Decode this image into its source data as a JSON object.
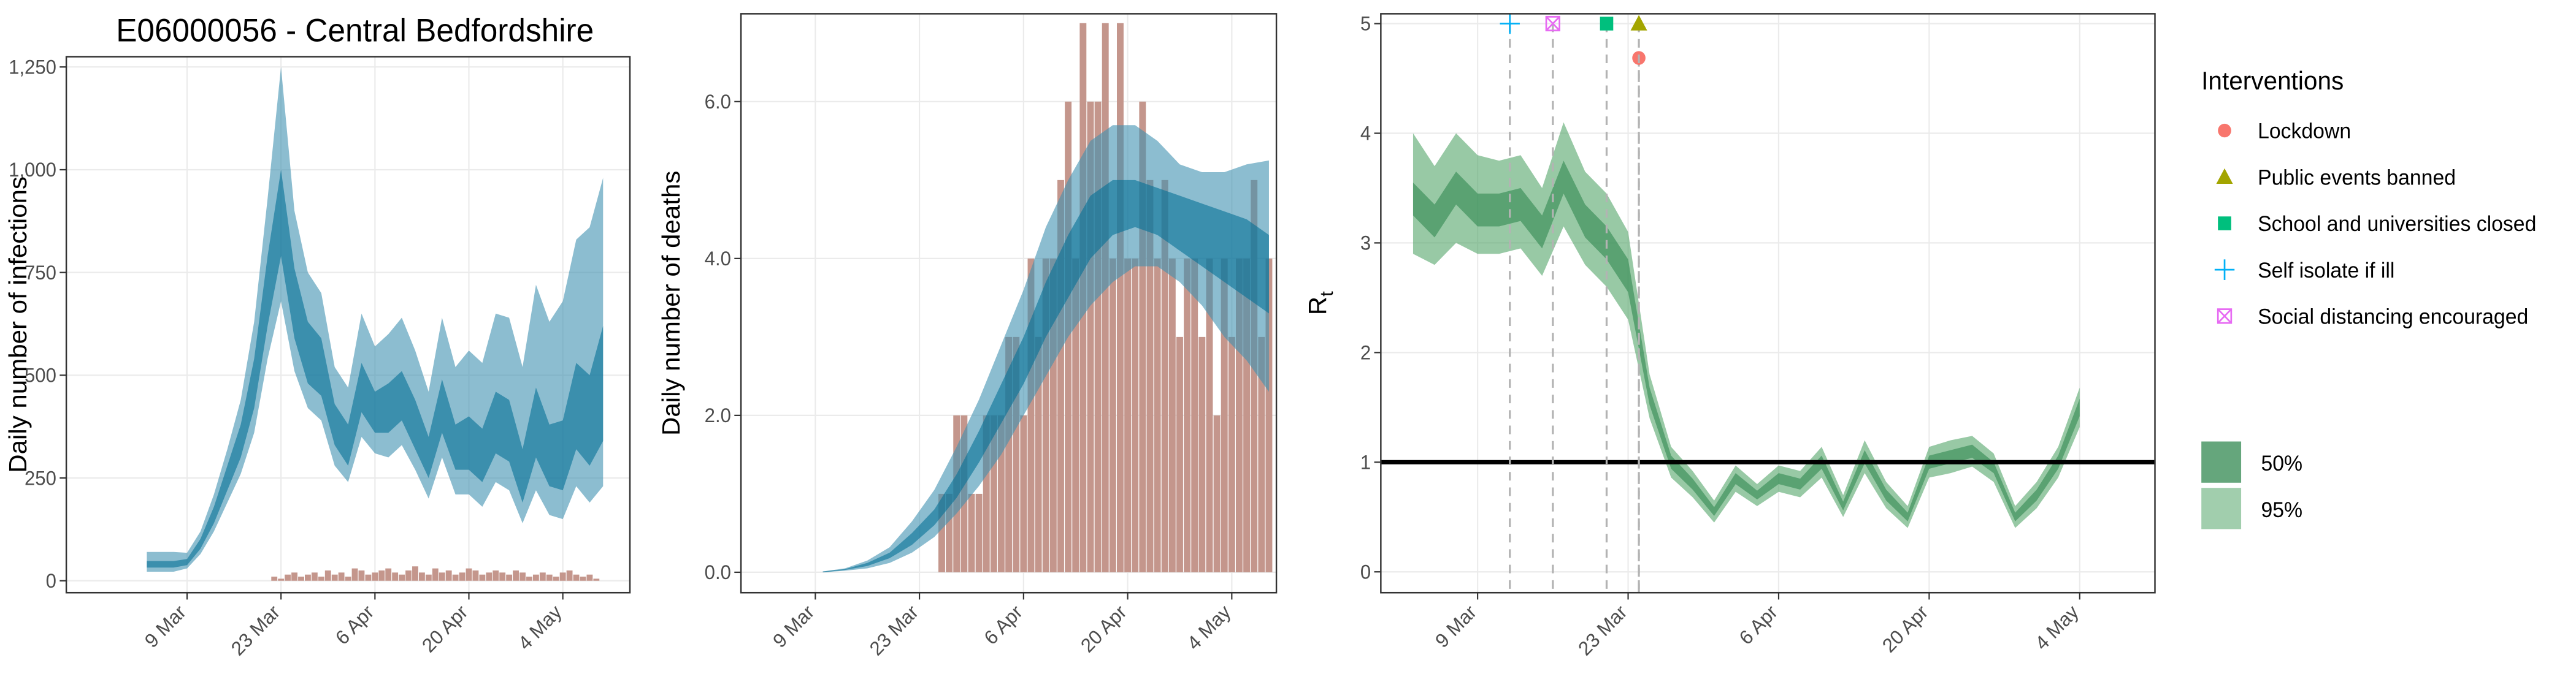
{
  "chart_data": [
    {
      "type": "band",
      "title": "E06000056 - Central Bedfordshire",
      "y_label": "Daily number of infections",
      "xlim": [
        "19 Feb",
        "14 May"
      ],
      "xticks": [
        "9 Mar",
        "23 Mar",
        "6 Apr",
        "20 Apr",
        "4 May"
      ],
      "ylim": [
        -29,
        1275
      ],
      "yticks": [
        0,
        250,
        500,
        750,
        {
          "value": 1000,
          "label": "1,000"
        },
        {
          "value": 1250,
          "label": "1,250"
        }
      ],
      "grid": true,
      "x": [
        "3 Mar",
        "5 Mar",
        "7 Mar",
        "9 Mar",
        "11 Mar",
        "13 Mar",
        "15 Mar",
        "17 Mar",
        "19 Mar",
        "21 Mar",
        "23 Mar",
        "25 Mar",
        "27 Mar",
        "29 Mar",
        "31 Mar",
        "2 Apr",
        "4 Apr",
        "6 Apr",
        "8 Apr",
        "10 Apr",
        "12 Apr",
        "14 Apr",
        "16 Apr",
        "18 Apr",
        "20 Apr",
        "22 Apr",
        "24 Apr",
        "26 Apr",
        "28 Apr",
        "30 Apr",
        "2 May",
        "4 May",
        "6 May",
        "8 May",
        "10 May"
      ],
      "bands": [
        {
          "color": "#056f96",
          "lower": [
            32,
            32,
            32,
            38,
            78,
            140,
            220,
            300,
            420,
            620,
            790,
            590,
            480,
            450,
            330,
            280,
            410,
            360,
            360,
            390,
            320,
            250,
            360,
            270,
            270,
            240,
            310,
            290,
            190,
            300,
            230,
            220,
            320,
            280,
            340
          ],
          "upper": [
            48,
            48,
            48,
            53,
            102,
            180,
            280,
            380,
            540,
            790,
            1000,
            760,
            630,
            590,
            430,
            380,
            530,
            460,
            480,
            510,
            440,
            350,
            490,
            380,
            400,
            370,
            460,
            440,
            320,
            470,
            380,
            390,
            530,
            500,
            620
          ]
        },
        {
          "color": "#3f91b1",
          "lower": [
            22,
            22,
            22,
            30,
            65,
            120,
            190,
            260,
            360,
            540,
            680,
            510,
            420,
            390,
            280,
            240,
            350,
            310,
            300,
            330,
            270,
            200,
            300,
            210,
            210,
            180,
            240,
            220,
            140,
            220,
            160,
            150,
            230,
            190,
            230
          ],
          "upper": [
            70,
            70,
            70,
            68,
            120,
            210,
            320,
            440,
            630,
            930,
            1250,
            900,
            750,
            700,
            520,
            470,
            650,
            570,
            600,
            640,
            560,
            460,
            640,
            520,
            560,
            530,
            650,
            640,
            520,
            720,
            630,
            680,
            830,
            860,
            980
          ]
        }
      ],
      "bars": {
        "color": "#c4968c",
        "x": [
          "22 Mar",
          "23 Mar",
          "24 Mar",
          "25 Mar",
          "26 Mar",
          "27 Mar",
          "28 Mar",
          "29 Mar",
          "30 Mar",
          "31 Mar",
          "1 Apr",
          "2 Apr",
          "3 Apr",
          "4 Apr",
          "5 Apr",
          "6 Apr",
          "7 Apr",
          "8 Apr",
          "9 Apr",
          "10 Apr",
          "11 Apr",
          "12 Apr",
          "13 Apr",
          "14 Apr",
          "15 Apr",
          "16 Apr",
          "17 Apr",
          "18 Apr",
          "19 Apr",
          "20 Apr",
          "21 Apr",
          "22 Apr",
          "23 Apr",
          "24 Apr",
          "25 Apr",
          "26 Apr",
          "27 Apr",
          "28 Apr",
          "29 Apr",
          "30 Apr",
          "1 May",
          "2 May",
          "3 May",
          "4 May",
          "5 May",
          "6 May",
          "7 May",
          "8 May",
          "9 May"
        ],
        "values": [
          10,
          5,
          15,
          20,
          10,
          15,
          20,
          10,
          25,
          15,
          20,
          10,
          30,
          25,
          15,
          20,
          25,
          30,
          20,
          15,
          25,
          35,
          20,
          15,
          30,
          20,
          25,
          15,
          20,
          30,
          25,
          15,
          20,
          25,
          20,
          15,
          25,
          20,
          10,
          15,
          20,
          15,
          10,
          20,
          25,
          15,
          10,
          15,
          5
        ]
      }
    },
    {
      "type": "band",
      "y_label": "Daily number of deaths",
      "xlim": [
        "27 Feb",
        "10 May"
      ],
      "xticks": [
        "9 Mar",
        "23 Mar",
        "6 Apr",
        "20 Apr",
        "4 May"
      ],
      "ylim": [
        -0.26,
        7.12
      ],
      "yticks": [
        {
          "value": 0,
          "label": "0.0"
        },
        {
          "value": 2,
          "label": "2.0"
        },
        {
          "value": 4,
          "label": "4.0"
        },
        {
          "value": 6,
          "label": "6.0"
        }
      ],
      "grid": true,
      "x": [
        "10 Mar",
        "13 Mar",
        "16 Mar",
        "19 Mar",
        "22 Mar",
        "25 Mar",
        "28 Mar",
        "31 Mar",
        "3 Apr",
        "6 Apr",
        "9 Apr",
        "12 Apr",
        "15 Apr",
        "18 Apr",
        "21 Apr",
        "24 Apr",
        "27 Apr",
        "30 Apr",
        "3 May",
        "6 May",
        "9 May"
      ],
      "bands": [
        {
          "color": "#056f96",
          "lower": [
            0,
            0.03,
            0.08,
            0.18,
            0.35,
            0.6,
            0.95,
            1.4,
            1.9,
            2.4,
            3.0,
            3.5,
            4.0,
            4.3,
            4.4,
            4.3,
            4.1,
            3.9,
            3.7,
            3.5,
            3.3
          ],
          "upper": [
            0.01,
            0.04,
            0.12,
            0.25,
            0.5,
            0.8,
            1.25,
            1.8,
            2.4,
            3.0,
            3.7,
            4.3,
            4.8,
            5.0,
            5.0,
            4.9,
            4.8,
            4.7,
            4.6,
            4.5,
            4.3
          ]
        },
        {
          "color": "#3f91b1",
          "lower": [
            0,
            0.02,
            0.05,
            0.12,
            0.25,
            0.45,
            0.75,
            1.1,
            1.5,
            2.0,
            2.5,
            3.0,
            3.4,
            3.7,
            3.9,
            3.9,
            3.7,
            3.4,
            3.0,
            2.7,
            2.3
          ],
          "upper": [
            0.01,
            0.05,
            0.15,
            0.32,
            0.65,
            1.05,
            1.6,
            2.2,
            2.9,
            3.6,
            4.4,
            5.0,
            5.5,
            5.7,
            5.7,
            5.5,
            5.2,
            5.1,
            5.1,
            5.2,
            5.25
          ]
        }
      ],
      "bars": {
        "color": "#c4968c",
        "x": [
          "26 Mar",
          "27 Mar",
          "28 Mar",
          "29 Mar",
          "30 Mar",
          "31 Mar",
          "1 Apr",
          "2 Apr",
          "3 Apr",
          "4 Apr",
          "5 Apr",
          "6 Apr",
          "7 Apr",
          "8 Apr",
          "9 Apr",
          "10 Apr",
          "11 Apr",
          "12 Apr",
          "13 Apr",
          "14 Apr",
          "15 Apr",
          "16 Apr",
          "17 Apr",
          "18 Apr",
          "19 Apr",
          "20 Apr",
          "21 Apr",
          "22 Apr",
          "23 Apr",
          "24 Apr",
          "25 Apr",
          "26 Apr",
          "27 Apr",
          "28 Apr",
          "29 Apr",
          "30 Apr",
          "1 May",
          "2 May",
          "3 May",
          "4 May",
          "5 May",
          "6 May",
          "7 May",
          "8 May",
          "9 May"
        ],
        "values": [
          1,
          1,
          2,
          2,
          1,
          1,
          2,
          2,
          2,
          3,
          3,
          2,
          4,
          3,
          4,
          4,
          5,
          6,
          4,
          7,
          6,
          6,
          7,
          4,
          7,
          4,
          4,
          6,
          5,
          4,
          5,
          4,
          3,
          4,
          4,
          3,
          4,
          2,
          4,
          3,
          4,
          4,
          5,
          3,
          4
        ]
      }
    },
    {
      "type": "band",
      "y_label": "R",
      "y_label_sub": "t",
      "xlim": [
        "28 Feb",
        "11 May"
      ],
      "xticks": [
        "9 Mar",
        "23 Mar",
        "6 Apr",
        "20 Apr",
        "4 May"
      ],
      "ylim": [
        -0.19,
        5.09
      ],
      "yticks": [
        0,
        1,
        2,
        3,
        4,
        5
      ],
      "grid": true,
      "hline": 1,
      "x": [
        "3 Mar",
        "5 Mar",
        "7 Mar",
        "9 Mar",
        "11 Mar",
        "13 Mar",
        "15 Mar",
        "17 Mar",
        "19 Mar",
        "21 Mar",
        "23 Mar",
        "25 Mar",
        "27 Mar",
        "29 Mar",
        "31 Mar",
        "2 Apr",
        "4 Apr",
        "6 Apr",
        "8 Apr",
        "10 Apr",
        "12 Apr",
        "14 Apr",
        "16 Apr",
        "18 Apr",
        "20 Apr",
        "22 Apr",
        "24 Apr",
        "26 Apr",
        "28 Apr",
        "30 Apr",
        "2 May",
        "4 May"
      ],
      "bands": [
        {
          "name": "50%",
          "color": "#318850",
          "lower": [
            3.25,
            3.05,
            3.35,
            3.15,
            3.15,
            3.2,
            2.95,
            3.45,
            3.05,
            2.85,
            2.55,
            1.52,
            0.94,
            0.75,
            0.51,
            0.8,
            0.66,
            0.8,
            0.75,
            0.94,
            0.56,
            0.99,
            0.65,
            0.46,
            0.94,
            0.99,
            1.04,
            0.9,
            0.46,
            0.65,
            0.94,
            1.42
          ],
          "upper": [
            3.55,
            3.35,
            3.65,
            3.45,
            3.45,
            3.5,
            3.25,
            3.75,
            3.35,
            3.15,
            2.85,
            1.68,
            1.06,
            0.85,
            0.59,
            0.9,
            0.74,
            0.9,
            0.85,
            1.06,
            0.64,
            1.11,
            0.75,
            0.54,
            1.06,
            1.11,
            1.16,
            1.0,
            0.54,
            0.75,
            1.06,
            1.58
          ]
        },
        {
          "name": "95%",
          "color": "#53a569",
          "lower": [
            2.9,
            2.8,
            3.0,
            2.9,
            2.9,
            2.95,
            2.7,
            3.15,
            2.8,
            2.6,
            2.3,
            1.4,
            0.86,
            0.68,
            0.45,
            0.73,
            0.6,
            0.73,
            0.68,
            0.86,
            0.5,
            0.9,
            0.58,
            0.4,
            0.86,
            0.9,
            0.96,
            0.82,
            0.4,
            0.58,
            0.86,
            1.32
          ],
          "upper": [
            4.0,
            3.7,
            4.0,
            3.8,
            3.75,
            3.8,
            3.5,
            4.1,
            3.65,
            3.45,
            3.1,
            1.8,
            1.14,
            0.92,
            0.65,
            0.97,
            0.8,
            0.97,
            0.92,
            1.14,
            0.7,
            1.2,
            0.82,
            0.6,
            1.14,
            1.2,
            1.24,
            1.08,
            0.6,
            0.82,
            1.14,
            1.68
          ]
        }
      ],
      "interventions": {
        "title": "Interventions",
        "items": [
          {
            "name": "Lockdown",
            "date": "24 Mar",
            "color": "#F8766D",
            "shape": "circle"
          },
          {
            "name": "Public events banned",
            "date": "24 Mar",
            "color": "#A3A500",
            "shape": "triangle"
          },
          {
            "name": "School and universities closed",
            "date": "21 Mar",
            "color": "#00BF7D",
            "shape": "square"
          },
          {
            "name": "Self isolate if ill",
            "date": "12 Mar",
            "color": "#00B0F6",
            "shape": "plus"
          },
          {
            "name": "Social distancing encouraged",
            "date": "16 Mar",
            "color": "#E76BF3",
            "shape": "boxcross"
          }
        ]
      }
    }
  ]
}
